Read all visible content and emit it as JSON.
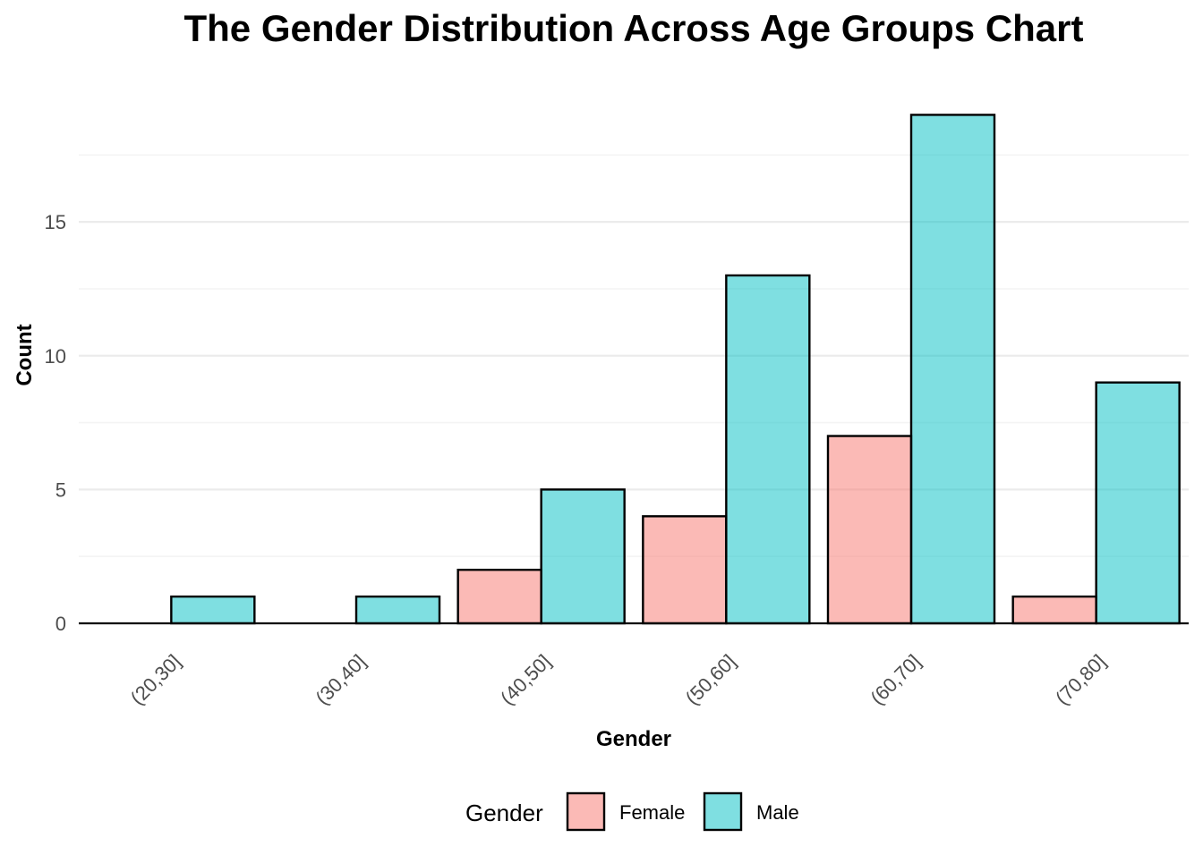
{
  "chart_data": {
    "type": "bar",
    "title": "The Gender Distribution Across Age Groups Chart",
    "xlabel": "Gender",
    "ylabel": "Count",
    "categories": [
      "(20,30]",
      "(30,40]",
      "(40,50]",
      "(50,60]",
      "(60,70]",
      "(70,80]"
    ],
    "series": [
      {
        "name": "Female",
        "color": "#F8766D",
        "values": [
          null,
          null,
          2,
          4,
          7,
          1
        ]
      },
      {
        "name": "Male",
        "color": "#00BFC4",
        "values": [
          1,
          1,
          5,
          13,
          19,
          9
        ]
      }
    ],
    "ylim": [
      0,
      19.95
    ],
    "yticks": [
      0,
      5,
      10,
      15
    ],
    "grid": true,
    "legend": {
      "title": "Gender",
      "position": "bottom",
      "items": [
        "Female",
        "Male"
      ]
    }
  }
}
